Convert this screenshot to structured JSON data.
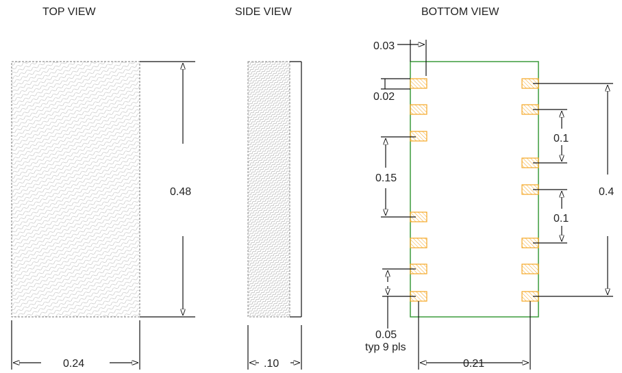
{
  "titles": {
    "top": "TOP VIEW",
    "side": "SIDE VIEW",
    "bottom": "BOTTOM VIEW"
  },
  "dimensions": {
    "top_height": "0.48",
    "top_width": "0.24",
    "side_width": ".10",
    "pad_offset": "0.03",
    "pad_height": "0.02",
    "pad_gap_left": "0.15",
    "pad_pitch_right_1": "0.1",
    "pad_pitch_right_2": "0.1",
    "pad_span": "0.4",
    "pitch": "0.05",
    "pitch_note": "typ 9 pls",
    "pad_column_span": "0.21"
  },
  "colors": {
    "package_outline": "#3a9a3a",
    "pad": "#f5a623"
  }
}
